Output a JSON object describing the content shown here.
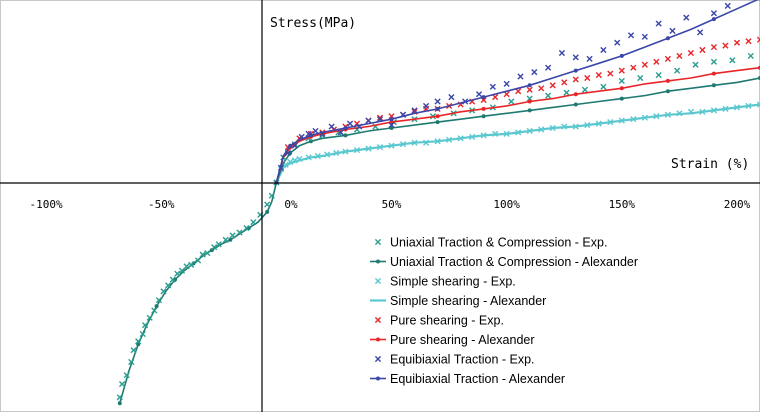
{
  "chart_data": {
    "type": "line",
    "xlabel": "Strain (%)",
    "ylabel": "Stress(MPa)",
    "xlim": [
      -120,
      210
    ],
    "ylim": [
      -1.56,
      1.24
    ],
    "x_ticks": [
      -100,
      -50,
      0,
      50,
      100,
      150,
      200
    ],
    "x_tick_labels": [
      "-100%",
      "-50%",
      "0%",
      "50%",
      "100%",
      "150%",
      "200%"
    ],
    "grid": false,
    "legend_position": "bottom-right",
    "series": [
      {
        "name": "Uniaxial Traction & Compression - Exp.",
        "style": "marker-x",
        "color": "#2a9d8f",
        "x": [
          -68,
          -67,
          -65,
          -63,
          -62,
          -60,
          -58,
          -57,
          -55,
          -53,
          -51,
          -49,
          -47,
          -45,
          -43,
          -41,
          -39,
          -37,
          -34,
          -32,
          -30,
          -27,
          -25,
          -22,
          -19,
          -16,
          -13,
          -10,
          -7,
          -4,
          -2,
          0,
          3,
          8,
          14,
          20,
          27,
          35,
          43,
          51,
          60,
          68,
          77,
          85,
          94,
          102,
          110,
          118,
          126,
          134,
          142,
          150,
          158,
          166,
          174,
          182,
          190,
          198,
          206
        ],
        "y": [
          -1.46,
          -1.37,
          -1.31,
          -1.22,
          -1.14,
          -1.08,
          -1.03,
          -0.97,
          -0.92,
          -0.87,
          -0.8,
          -0.74,
          -0.7,
          -0.66,
          -0.62,
          -0.6,
          -0.57,
          -0.56,
          -0.53,
          -0.49,
          -0.48,
          -0.44,
          -0.42,
          -0.39,
          -0.36,
          -0.34,
          -0.31,
          -0.27,
          -0.22,
          -0.15,
          -0.09,
          0.0,
          0.17,
          0.26,
          0.3,
          0.32,
          0.34,
          0.36,
          0.38,
          0.41,
          0.43,
          0.45,
          0.47,
          0.49,
          0.51,
          0.55,
          0.57,
          0.59,
          0.61,
          0.63,
          0.65,
          0.69,
          0.71,
          0.73,
          0.76,
          0.8,
          0.82,
          0.83,
          0.86
        ]
      },
      {
        "name": "Uniaxial Traction & Compression - Alexander",
        "style": "line-dot",
        "color": "#1e7a70",
        "x": [
          -68,
          -64,
          -60,
          -56,
          -52,
          -48,
          -44,
          -40,
          -36,
          -32,
          -28,
          -24,
          -20,
          -16,
          -12,
          -8,
          -4,
          -2,
          0,
          3,
          6,
          10,
          15,
          20,
          30,
          40,
          50,
          60,
          70,
          80,
          90,
          100,
          110,
          120,
          130,
          140,
          150,
          160,
          170,
          180,
          190,
          200,
          210
        ],
        "y": [
          -1.5,
          -1.28,
          -1.1,
          -0.96,
          -0.84,
          -0.74,
          -0.66,
          -0.6,
          -0.55,
          -0.5,
          -0.46,
          -0.42,
          -0.39,
          -0.35,
          -0.31,
          -0.27,
          -0.2,
          -0.13,
          0.0,
          0.13,
          0.2,
          0.25,
          0.28,
          0.3,
          0.32,
          0.35,
          0.37,
          0.39,
          0.41,
          0.43,
          0.45,
          0.47,
          0.49,
          0.51,
          0.53,
          0.55,
          0.57,
          0.59,
          0.62,
          0.64,
          0.66,
          0.68,
          0.71
        ]
      },
      {
        "name": "Simple shearing - Exp.",
        "style": "marker-x",
        "color": "#5bc8d0",
        "x": [
          0,
          2,
          4,
          6,
          8,
          10,
          14,
          18,
          22,
          26,
          30,
          35,
          40,
          45,
          50,
          55,
          60,
          65,
          70,
          75,
          80,
          85,
          90,
          95,
          100,
          105,
          110,
          115,
          120,
          125,
          130,
          135,
          140,
          145,
          150,
          155,
          160,
          165,
          170,
          175,
          180,
          185,
          190,
          195,
          200,
          205,
          210
        ],
        "y": [
          0.0,
          0.09,
          0.12,
          0.14,
          0.15,
          0.16,
          0.17,
          0.18,
          0.19,
          0.2,
          0.21,
          0.22,
          0.23,
          0.24,
          0.25,
          0.26,
          0.27,
          0.27,
          0.28,
          0.29,
          0.3,
          0.31,
          0.32,
          0.33,
          0.33,
          0.34,
          0.35,
          0.36,
          0.37,
          0.38,
          0.38,
          0.39,
          0.4,
          0.41,
          0.42,
          0.43,
          0.44,
          0.45,
          0.46,
          0.47,
          0.48,
          0.48,
          0.49,
          0.5,
          0.51,
          0.52,
          0.53
        ]
      },
      {
        "name": "Simple shearing - Alexander",
        "style": "line",
        "color": "#5bc8d0",
        "x": [
          0,
          3,
          6,
          10,
          15,
          20,
          30,
          40,
          50,
          60,
          70,
          80,
          90,
          100,
          110,
          120,
          130,
          140,
          150,
          160,
          170,
          180,
          190,
          200,
          210
        ],
        "y": [
          0.0,
          0.1,
          0.13,
          0.15,
          0.17,
          0.18,
          0.21,
          0.23,
          0.25,
          0.27,
          0.28,
          0.3,
          0.32,
          0.33,
          0.35,
          0.37,
          0.38,
          0.4,
          0.42,
          0.44,
          0.46,
          0.47,
          0.49,
          0.51,
          0.53
        ]
      },
      {
        "name": "Pure shearing - Exp.",
        "style": "marker-x",
        "color": "#e8262a",
        "x": [
          5,
          10,
          15,
          20,
          25,
          30,
          35,
          40,
          45,
          50,
          55,
          60,
          65,
          70,
          75,
          80,
          85,
          90,
          95,
          100,
          105,
          110,
          115,
          120,
          125,
          130,
          135,
          140,
          145,
          150,
          155,
          160,
          165,
          170,
          175,
          180,
          185,
          190,
          195,
          200,
          205,
          210
        ],
        "y": [
          0.24,
          0.3,
          0.33,
          0.34,
          0.36,
          0.38,
          0.4,
          0.42,
          0.44,
          0.45,
          0.46,
          0.48,
          0.5,
          0.5,
          0.52,
          0.53,
          0.55,
          0.56,
          0.58,
          0.6,
          0.62,
          0.63,
          0.64,
          0.66,
          0.68,
          0.7,
          0.71,
          0.73,
          0.74,
          0.76,
          0.78,
          0.8,
          0.82,
          0.84,
          0.86,
          0.88,
          0.9,
          0.92,
          0.93,
          0.95,
          0.96,
          0.97
        ]
      },
      {
        "name": "Pure shearing - Alexander",
        "style": "line-dot",
        "color": "#e8262a",
        "x": [
          0,
          3,
          6,
          10,
          15,
          20,
          30,
          40,
          50,
          60,
          70,
          80,
          90,
          100,
          110,
          120,
          130,
          140,
          150,
          160,
          170,
          180,
          190,
          200,
          210
        ],
        "y": [
          0.0,
          0.17,
          0.24,
          0.28,
          0.31,
          0.33,
          0.36,
          0.38,
          0.41,
          0.43,
          0.45,
          0.48,
          0.5,
          0.52,
          0.55,
          0.57,
          0.6,
          0.62,
          0.64,
          0.67,
          0.69,
          0.71,
          0.74,
          0.76,
          0.78
        ]
      },
      {
        "name": "Equibiaxial Traction - Exp.",
        "style": "marker-x",
        "color": "#3a46a8",
        "x": [
          2,
          5,
          8,
          11,
          14,
          17,
          20,
          24,
          28,
          32,
          36,
          40,
          45,
          50,
          55,
          60,
          65,
          70,
          76,
          82,
          88,
          94,
          100,
          106,
          112,
          118,
          124,
          130,
          136,
          142,
          148,
          154,
          160,
          166,
          172,
          178,
          184,
          190,
          196
        ],
        "y": [
          0.1,
          0.2,
          0.25,
          0.31,
          0.33,
          0.35,
          0.33,
          0.38,
          0.34,
          0.4,
          0.38,
          0.42,
          0.43,
          0.39,
          0.46,
          0.49,
          0.52,
          0.55,
          0.58,
          0.55,
          0.6,
          0.65,
          0.67,
          0.72,
          0.75,
          0.78,
          0.88,
          0.85,
          0.84,
          0.9,
          0.95,
          1.0,
          0.99,
          1.08,
          1.03,
          1.12,
          1.02,
          1.15,
          1.2
        ]
      },
      {
        "name": "Equibiaxial Traction - Alexander",
        "style": "line-dot",
        "color": "#3a46a8",
        "x": [
          0,
          3,
          6,
          10,
          15,
          20,
          30,
          40,
          50,
          60,
          70,
          80,
          90,
          100,
          110,
          120,
          130,
          140,
          150,
          160,
          170,
          180,
          190,
          200,
          210
        ],
        "y": [
          0.0,
          0.18,
          0.25,
          0.29,
          0.32,
          0.34,
          0.37,
          0.4,
          0.43,
          0.47,
          0.5,
          0.54,
          0.58,
          0.62,
          0.66,
          0.71,
          0.76,
          0.81,
          0.86,
          0.92,
          0.98,
          1.04,
          1.11,
          1.18,
          1.25
        ]
      }
    ]
  }
}
